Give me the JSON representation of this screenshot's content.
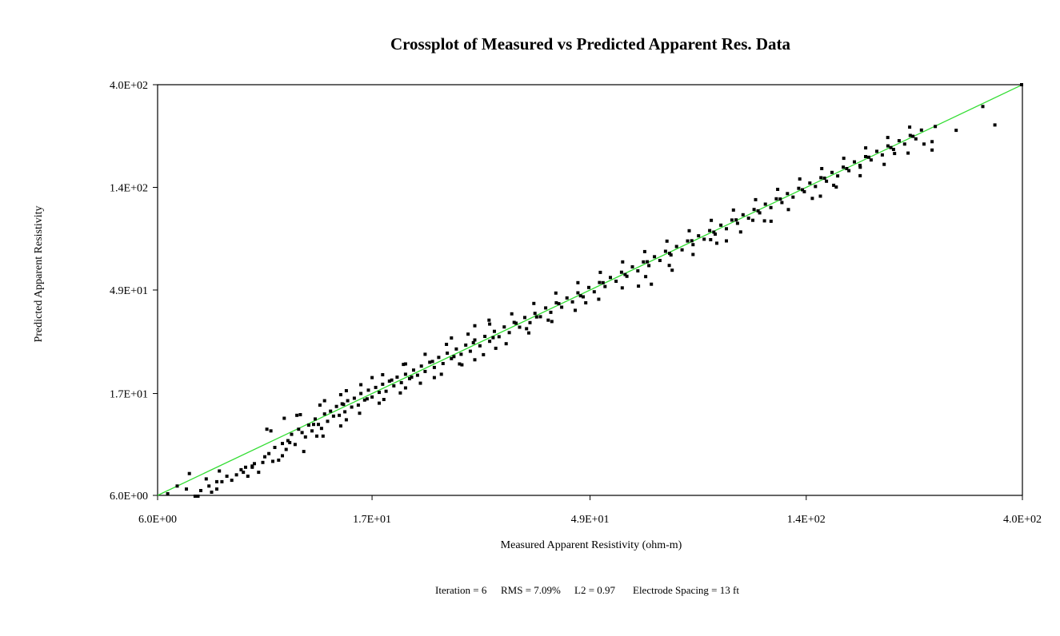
{
  "chart_data": {
    "type": "scatter",
    "title": "Crossplot of Measured vs Predicted Apparent Res. Data",
    "xlabel": "Measured Apparent Resistivity (ohm-m)",
    "ylabel": "Predicted Apparent Resistivity",
    "x_scale": "log",
    "y_scale": "log",
    "xlim": [
      6.0,
      400.0
    ],
    "ylim": [
      6.0,
      400.0
    ],
    "x_ticks": [
      6.0,
      17.0,
      49.0,
      140.0,
      400.0
    ],
    "y_ticks": [
      6.0,
      17.0,
      49.0,
      140.0,
      400.0
    ],
    "x_tick_labels": [
      "6.0E+00",
      "1.7E+01",
      "4.9E+01",
      "1.4E+02",
      "4.0E+02"
    ],
    "y_tick_labels": [
      "6.0E+00",
      "1.7E+01",
      "4.9E+01",
      "1.4E+02",
      "4.0E+02"
    ],
    "grid": false,
    "legend": "none",
    "reference_line": {
      "x": [
        6.0,
        400.0
      ],
      "y": [
        6.0,
        400.0
      ],
      "color": "#33dd33"
    },
    "marker_color": "#000000",
    "series": [
      {
        "points": [
          [
            6.3,
            6.1
          ],
          [
            6.6,
            6.6
          ],
          [
            6.9,
            6.4
          ],
          [
            7.2,
            5.9
          ],
          [
            7.4,
            6.3
          ],
          [
            7.7,
            6.6
          ],
          [
            7.8,
            6.2
          ],
          [
            8.0,
            6.4
          ],
          [
            8.2,
            6.9
          ],
          [
            8.4,
            7.3
          ],
          [
            8.6,
            7.0
          ],
          [
            8.8,
            7.4
          ],
          [
            9.0,
            7.8
          ],
          [
            9.1,
            7.6
          ],
          [
            9.3,
            7.3
          ],
          [
            9.5,
            8.0
          ],
          [
            9.6,
            8.3
          ],
          [
            9.8,
            7.6
          ],
          [
            10.0,
            8.4
          ],
          [
            10.1,
            8.9
          ],
          [
            10.3,
            9.2
          ],
          [
            10.5,
            8.5
          ],
          [
            10.6,
            9.8
          ],
          [
            10.8,
            8.6
          ],
          [
            11.0,
            10.2
          ],
          [
            11.2,
            9.6
          ],
          [
            11.3,
            10.5
          ],
          [
            11.5,
            11.2
          ],
          [
            11.7,
            10.1
          ],
          [
            11.9,
            11.8
          ],
          [
            12.1,
            11.4
          ],
          [
            12.3,
            10.9
          ],
          [
            12.5,
            12.3
          ],
          [
            12.7,
            11.6
          ],
          [
            12.9,
            13.1
          ],
          [
            13.1,
            12.4
          ],
          [
            13.3,
            11.9
          ],
          [
            13.5,
            13.8
          ],
          [
            13.7,
            12.8
          ],
          [
            13.9,
            14.2
          ],
          [
            14.1,
            13.5
          ],
          [
            14.3,
            14.9
          ],
          [
            14.5,
            13.6
          ],
          [
            14.7,
            15.3
          ],
          [
            14.9,
            14.1
          ],
          [
            15.1,
            15.8
          ],
          [
            15.4,
            14.8
          ],
          [
            15.6,
            16.2
          ],
          [
            15.9,
            15.1
          ],
          [
            16.1,
            17.0
          ],
          [
            16.4,
            15.9
          ],
          [
            16.7,
            17.6
          ],
          [
            17.0,
            16.4
          ],
          [
            17.3,
            18.1
          ],
          [
            17.6,
            17.2
          ],
          [
            17.9,
            18.7
          ],
          [
            18.2,
            17.4
          ],
          [
            18.5,
            19.3
          ],
          [
            18.9,
            18.4
          ],
          [
            19.2,
            20.1
          ],
          [
            19.6,
            19.0
          ],
          [
            20.0,
            20.7
          ],
          [
            20.4,
            19.8
          ],
          [
            20.8,
            21.6
          ],
          [
            21.2,
            20.5
          ],
          [
            21.6,
            22.5
          ],
          [
            22.0,
            21.3
          ],
          [
            22.5,
            23.4
          ],
          [
            23.0,
            22.2
          ],
          [
            23.5,
            24.6
          ],
          [
            24.0,
            23.1
          ],
          [
            24.5,
            25.7
          ],
          [
            25.0,
            24.3
          ],
          [
            25.6,
            26.8
          ],
          [
            26.2,
            25.4
          ],
          [
            26.8,
            27.9
          ],
          [
            27.4,
            26.2
          ],
          [
            28.0,
            29.4
          ],
          [
            28.7,
            27.7
          ],
          [
            29.4,
            30.5
          ],
          [
            30.1,
            29.0
          ],
          [
            30.8,
            32.1
          ],
          [
            31.5,
            30.4
          ],
          [
            32.3,
            33.6
          ],
          [
            33.1,
            31.7
          ],
          [
            33.9,
            35.2
          ],
          [
            34.8,
            33.5
          ],
          [
            35.7,
            37.0
          ],
          [
            36.6,
            35.1
          ],
          [
            37.5,
            38.6
          ],
          [
            38.5,
            37.3
          ],
          [
            39.5,
            40.8
          ],
          [
            40.5,
            39.0
          ],
          [
            41.6,
            43.0
          ],
          [
            42.7,
            41.1
          ],
          [
            43.8,
            45.2
          ],
          [
            45.0,
            43.4
          ],
          [
            46.2,
            47.6
          ],
          [
            47.4,
            45.7
          ],
          [
            48.7,
            50.3
          ],
          [
            50.0,
            48.1
          ],
          [
            51.3,
            52.9
          ],
          [
            52.7,
            50.8
          ],
          [
            54.1,
            55.7
          ],
          [
            55.6,
            53.6
          ],
          [
            57.1,
            58.8
          ],
          [
            58.6,
            56.4
          ],
          [
            60.2,
            62.1
          ],
          [
            61.8,
            59.6
          ],
          [
            63.5,
            65.3
          ],
          [
            65.2,
            62.9
          ],
          [
            67.0,
            68.9
          ],
          [
            68.8,
            66.3
          ],
          [
            70.7,
            72.8
          ],
          [
            72.6,
            70.1
          ],
          [
            74.6,
            76.5
          ],
          [
            76.6,
            73.9
          ],
          [
            78.7,
            80.9
          ],
          [
            80.8,
            77.9
          ],
          [
            83.0,
            85.3
          ],
          [
            85.3,
            82.4
          ],
          [
            87.6,
            90.0
          ],
          [
            90.0,
            86.8
          ],
          [
            92.5,
            95.1
          ],
          [
            95.0,
            91.7
          ],
          [
            97.6,
            100.2
          ],
          [
            100.3,
            96.9
          ],
          [
            103.0,
            105.8
          ],
          [
            105.8,
            102.1
          ],
          [
            108.7,
            111.6
          ],
          [
            111.7,
            107.9
          ],
          [
            114.8,
            117.9
          ],
          [
            117.9,
            113.8
          ],
          [
            121.1,
            124.5
          ],
          [
            124.4,
            119.9
          ],
          [
            127.8,
            131.3
          ],
          [
            131.3,
            126.7
          ],
          [
            135.0,
            138.6
          ],
          [
            138.7,
            133.9
          ],
          [
            142.5,
            146.3
          ],
          [
            146.4,
            141.2
          ],
          [
            150.4,
            154.5
          ],
          [
            154.5,
            149.1
          ],
          [
            158.7,
            163.1
          ],
          [
            163.1,
            157.3
          ],
          [
            167.6,
            172.2
          ],
          [
            172.2,
            166.1
          ],
          [
            176.9,
            181.7
          ],
          [
            181.8,
            175.3
          ],
          [
            186.8,
            191.8
          ],
          [
            191.9,
            185.2
          ],
          [
            197.2,
            202.4
          ],
          [
            202.6,
            195.1
          ],
          [
            208.2,
            214.0
          ],
          [
            213.9,
            206.3
          ],
          [
            219.8,
            225.6
          ],
          [
            225.8,
            218.0
          ],
          [
            232.0,
            238.0
          ],
          [
            238.4,
            229.8
          ],
          [
            245.0,
            251.5
          ],
          [
            12.2,
            9.4
          ],
          [
            13.4,
            11.0
          ],
          [
            14.6,
            12.2
          ],
          [
            16.0,
            13.9
          ],
          [
            17.6,
            15.4
          ],
          [
            19.5,
            17.1
          ],
          [
            21.5,
            18.9
          ],
          [
            23.8,
            20.7
          ],
          [
            26.3,
            22.8
          ],
          [
            29.2,
            25.3
          ],
          [
            32.6,
            28.3
          ],
          [
            36.4,
            31.6
          ],
          [
            40.7,
            35.5
          ],
          [
            45.6,
            39.8
          ],
          [
            51.1,
            44.6
          ],
          [
            57.3,
            50.1
          ],
          [
            64.2,
            56.2
          ],
          [
            72.0,
            63.0
          ],
          [
            80.8,
            70.5
          ],
          [
            90.7,
            79.1
          ],
          [
            101.8,
            88.7
          ],
          [
            114.3,
            99.4
          ],
          [
            128.4,
            111.5
          ],
          [
            144.2,
            125.1
          ],
          [
            162.0,
            140.4
          ],
          [
            181.9,
            157.7
          ],
          [
            204.4,
            177.1
          ],
          [
            229.6,
            198.8
          ],
          [
            258.0,
            223.3
          ],
          [
            290.0,
            250.8
          ],
          [
            10.4,
            11.6
          ],
          [
            11.8,
            13.6
          ],
          [
            13.2,
            15.1
          ],
          [
            14.6,
            16.8
          ],
          [
            16.1,
            18.6
          ],
          [
            17.9,
            20.6
          ],
          [
            19.8,
            22.9
          ],
          [
            22.0,
            25.4
          ],
          [
            24.4,
            28.1
          ],
          [
            27.1,
            31.2
          ],
          [
            30.1,
            34.6
          ],
          [
            33.5,
            38.4
          ],
          [
            37.3,
            42.7
          ],
          [
            41.5,
            47.5
          ],
          [
            46.2,
            52.8
          ],
          [
            51.5,
            58.7
          ],
          [
            57.4,
            65.3
          ],
          [
            63.9,
            72.6
          ],
          [
            71.2,
            80.8
          ],
          [
            79.3,
            89.8
          ],
          [
            88.3,
            99.9
          ],
          [
            98.3,
            111.0
          ],
          [
            109.5,
            123.4
          ],
          [
            121.9,
            137.2
          ],
          [
            135.7,
            152.5
          ],
          [
            151.0,
            169.6
          ],
          [
            168.0,
            188.5
          ],
          [
            186.9,
            209.6
          ],
          [
            208.0,
            233.0
          ],
          [
            231.4,
            259.1
          ],
          [
            330.0,
            320.0
          ],
          [
            350.0,
            265.0
          ],
          [
            258.0,
            205.0
          ],
          [
            248.0,
            218.0
          ],
          [
            215.0,
            198.0
          ],
          [
            182.0,
            172.0
          ],
          [
            160.0,
            143.0
          ],
          [
            150.0,
            128.0
          ],
          [
            118.0,
            99.0
          ],
          [
            108.0,
            100.0
          ],
          [
            95.0,
            81.0
          ],
          [
            88.0,
            82.0
          ],
          [
            73.0,
            60.0
          ],
          [
            62.0,
            51.0
          ],
          [
            66.0,
            52.0
          ],
          [
            48.0,
            43.0
          ],
          [
            40.0,
            36.0
          ],
          [
            36.0,
            33.0
          ],
          [
            31.0,
            27.0
          ],
          [
            28.0,
            24.0
          ],
          [
            26.0,
            23.0
          ],
          [
            23.0,
            20.0
          ],
          [
            20.0,
            18.0
          ],
          [
            18.0,
            16.0
          ],
          [
            15.0,
            13.0
          ],
          [
            13.0,
            11.0
          ],
          [
            11.0,
            9.0
          ],
          [
            9.5,
            8.1
          ],
          [
            8.0,
            6.9
          ],
          [
            7.3,
            5.9
          ],
          [
            30.0,
            36.0
          ],
          [
            28.0,
            34.0
          ],
          [
            25.0,
            30.0
          ],
          [
            20.0,
            23.0
          ],
          [
            17.0,
            20.0
          ],
          [
            15.0,
            17.5
          ],
          [
            13.5,
            15.8
          ],
          [
            12.0,
            13.7
          ],
          [
            11.1,
            13.2
          ],
          [
            10.2,
            11.8
          ],
          [
            7.0,
            7.5
          ],
          [
            7.6,
            7.1
          ],
          [
            9.2,
            8.0
          ],
          [
            8.1,
            7.7
          ],
          [
            11.4,
            10.3
          ],
          [
            12.8,
            12.4
          ],
          [
            14.8,
            15.2
          ],
          [
            16.6,
            16.1
          ],
          [
            18.7,
            19.5
          ],
          [
            20.6,
            20.1
          ],
          [
            22.8,
            23.6
          ],
          [
            25.3,
            24.8
          ],
          [
            27.8,
            28.6
          ],
          [
            30.6,
            30.1
          ],
          [
            34.2,
            34.9
          ],
          [
            37.8,
            37.2
          ],
          [
            42.1,
            42.6
          ],
          [
            46.8,
            46.2
          ],
          [
            52.2,
            52.8
          ],
          [
            58.1,
            57.4
          ],
          [
            64.7,
            65.4
          ],
          [
            72.1,
            71.3
          ],
          [
            80.3,
            81.1
          ],
          [
            89.4,
            88.6
          ],
          [
            99.6,
            100.4
          ],
          [
            110.8,
            110.1
          ],
          [
            123.4,
            124.2
          ],
          [
            137.4,
            136.6
          ],
          [
            153.0,
            153.8
          ],
          [
            170.4,
            169.6
          ],
          [
            189.7,
            190.5
          ],
          [
            211.2,
            210.3
          ],
          [
            235.1,
            236.0
          ],
          [
            262.0,
            261.0
          ],
          [
            400.0,
            400.0
          ]
        ]
      }
    ],
    "annotations": {
      "iteration": "Iteration = 6",
      "rms": "RMS = 7.09%",
      "l2": "L2 = 0.97",
      "spacing": "Electrode Spacing = 13 ft"
    }
  }
}
